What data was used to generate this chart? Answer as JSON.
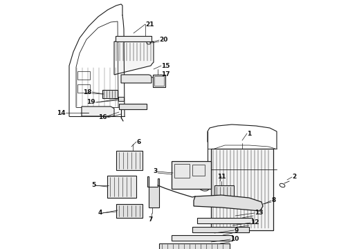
{
  "bg_color": "#ffffff",
  "fig_width": 4.9,
  "fig_height": 3.6,
  "dpi": 100,
  "line_color": "#1a1a1a",
  "label_color": "#111111",
  "label_fontsize": 6.5
}
